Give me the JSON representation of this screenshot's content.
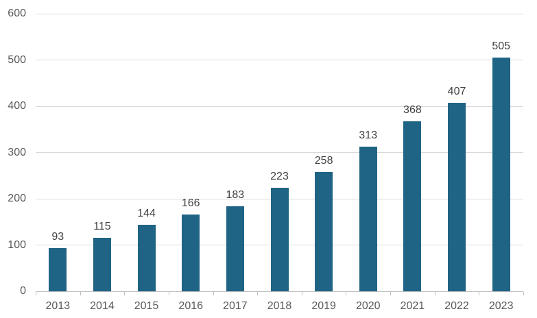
{
  "chart_data": {
    "type": "bar",
    "title": "",
    "xlabel": "",
    "ylabel": "",
    "categories": [
      "2013",
      "2014",
      "2015",
      "2016",
      "2017",
      "2018",
      "2019",
      "2020",
      "2021",
      "2022",
      "2023"
    ],
    "values": [
      93,
      115,
      144,
      166,
      183,
      223,
      258,
      313,
      368,
      407,
      505
    ],
    "data_labels": [
      "93",
      "115",
      "144",
      "166",
      "183",
      "223",
      "258",
      "313",
      "368",
      "407",
      "505"
    ],
    "ylim": [
      0,
      600
    ],
    "y_ticks": [
      0,
      100,
      200,
      300,
      400,
      500,
      600
    ],
    "y_tick_labels": [
      "0",
      "100",
      "200",
      "300",
      "400",
      "500",
      "600"
    ],
    "grid": "horizontal",
    "legend": "none",
    "colors": {
      "bar": "#1f6385",
      "gridline": "#d9d9d9",
      "axis_line": "#bfbfbf",
      "axis_tick": "#bfbfbf",
      "axis_label": "#595959",
      "data_label": "#404040",
      "background": "#ffffff"
    }
  }
}
